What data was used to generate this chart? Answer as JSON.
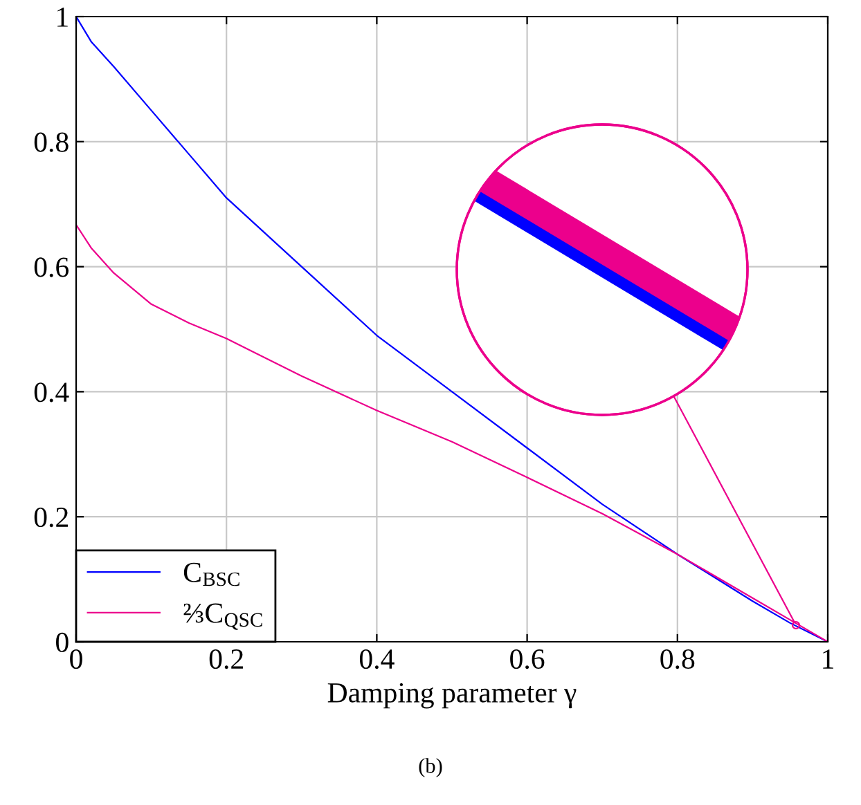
{
  "chart_data": {
    "type": "line",
    "xlabel": "Damping parameter γ",
    "x": [
      0,
      0.02,
      0.05,
      0.1,
      0.15,
      0.2,
      0.3,
      0.4,
      0.5,
      0.6,
      0.7,
      0.8,
      0.9,
      0.95,
      1
    ],
    "series": [
      {
        "name": "C$_{BSC}$",
        "color": "#0000ff",
        "values": [
          1,
          0.96,
          0.92,
          0.85,
          0.78,
          0.71,
          0.6,
          0.49,
          0.4,
          0.31,
          0.22,
          0.14,
          0.065,
          0.03,
          0
        ]
      },
      {
        "name": "⅔C$_{QSC}$",
        "color": "#ec008c",
        "values": [
          0.667,
          0.63,
          0.59,
          0.54,
          0.51,
          0.485,
          0.425,
          0.37,
          0.32,
          0.263,
          0.205,
          0.14,
          0.07,
          0.035,
          0
        ]
      }
    ],
    "xlim": [
      0,
      1
    ],
    "ylim": [
      0,
      1
    ],
    "xticks": [
      0,
      0.2,
      0.4,
      0.6,
      0.8,
      1
    ],
    "yticks": [
      0,
      0.2,
      0.4,
      0.6,
      0.8,
      1
    ],
    "grid": true,
    "legend": "bottom left",
    "marker": "none",
    "line_style": "solid",
    "annotations": [
      "(b)"
    ]
  }
}
